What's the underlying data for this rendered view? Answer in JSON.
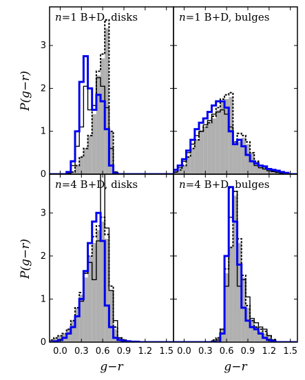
{
  "chart_data": {
    "type": "histogram-grid",
    "xlabel": "g−r",
    "ylabel": "P(g−r)",
    "xlim": [
      -0.15,
      1.6
    ],
    "xticks": [
      0.0,
      0.3,
      0.6,
      0.9,
      1.2,
      1.5
    ],
    "xtick_labels": [
      "0.0",
      "0.3",
      "0.6",
      "0.9",
      "1.2",
      "1.5"
    ],
    "ylim": [
      0,
      3.9
    ],
    "yticks": [
      0,
      1,
      2,
      3
    ],
    "ytick_labels": [
      "0",
      "1",
      "2",
      "3"
    ],
    "bin_edges": [
      -0.15,
      -0.09,
      -0.03,
      0.03,
      0.09,
      0.15,
      0.21,
      0.27,
      0.33,
      0.39,
      0.45,
      0.51,
      0.57,
      0.63,
      0.69,
      0.75,
      0.81,
      0.87,
      0.93,
      0.99,
      1.05,
      1.11,
      1.17,
      1.23,
      1.29,
      1.35,
      1.41,
      1.47,
      1.53,
      1.59
    ],
    "series_styles": {
      "filled": {
        "fill": "#b0b0b0"
      },
      "dotted": {
        "color": "#000000",
        "dash": "3,2",
        "width": 2
      },
      "black": {
        "color": "#000000",
        "width": 1.4
      },
      "blue": {
        "color": "#0000ee",
        "width": 3
      }
    },
    "panels": [
      {
        "title": "n=1 B+D, disks",
        "title_parts": [
          "n",
          "=1 B+D, disks"
        ],
        "filled": [
          0,
          0,
          0,
          0,
          0.02,
          0.05,
          0.2,
          0.4,
          0.6,
          0.9,
          1.4,
          2.3,
          2.7,
          3.4,
          1.0,
          0.05,
          0,
          0,
          0,
          0,
          0,
          0,
          0,
          0,
          0,
          0,
          0,
          0,
          0
        ],
        "dotted": [
          0,
          0,
          0,
          0,
          0.02,
          0.05,
          0.2,
          0.4,
          0.6,
          0.9,
          1.5,
          2.4,
          2.8,
          3.6,
          1.0,
          0.05,
          0,
          0,
          0,
          0,
          0,
          0,
          0,
          0,
          0,
          0,
          0,
          0,
          0
        ],
        "black": [
          0,
          0,
          0,
          0,
          0.02,
          0.2,
          0.65,
          1.1,
          2.05,
          1.5,
          1.6,
          2.25,
          2.05,
          1.55,
          0.6,
          0.05,
          0,
          0,
          0,
          0,
          0,
          0,
          0,
          0,
          0,
          0,
          0,
          0,
          0
        ],
        "blue": [
          0,
          0,
          0,
          0,
          0.05,
          0.3,
          1.0,
          2.15,
          2.75,
          2.0,
          1.5,
          1.85,
          1.7,
          1.05,
          0.2,
          0.02,
          0,
          0,
          0,
          0,
          0,
          0,
          0,
          0,
          0,
          0,
          0,
          0,
          0
        ]
      },
      {
        "title": "n=1 B+D, bulges",
        "title_parts": [
          "n",
          "=1 B+D, bulges"
        ],
        "filled": [
          0.05,
          0.1,
          0.2,
          0.4,
          0.6,
          0.8,
          1.0,
          1.1,
          1.2,
          1.3,
          1.5,
          1.7,
          1.75,
          1.8,
          0.7,
          0.75,
          0.85,
          0.7,
          0.5,
          0.3,
          0.2,
          0.15,
          0.12,
          0.08,
          0.06,
          0.04,
          0.02,
          0,
          0
        ],
        "dotted": [
          0.05,
          0.1,
          0.2,
          0.4,
          0.6,
          0.8,
          1.0,
          1.1,
          1.2,
          1.35,
          1.55,
          1.75,
          1.85,
          1.9,
          0.75,
          0.95,
          0.9,
          0.75,
          0.5,
          0.3,
          0.2,
          0.15,
          0.12,
          0.08,
          0.06,
          0.04,
          0.02,
          0,
          0
        ],
        "black": [
          0.05,
          0.15,
          0.3,
          0.5,
          0.7,
          0.9,
          1.0,
          1.15,
          1.25,
          1.4,
          1.45,
          1.5,
          1.4,
          1.1,
          0.75,
          0.8,
          0.65,
          0.45,
          0.3,
          0.2,
          0.15,
          0.12,
          0.08,
          0.06,
          0.04,
          0.02,
          0.01,
          0,
          0
        ],
        "blue": [
          0.1,
          0.2,
          0.35,
          0.55,
          0.8,
          1.05,
          1.2,
          1.3,
          1.45,
          1.6,
          1.7,
          1.7,
          1.55,
          1.0,
          0.7,
          0.8,
          0.65,
          0.45,
          0.3,
          0.25,
          0.2,
          0.18,
          0.12,
          0.1,
          0.08,
          0.05,
          0.03,
          0,
          0
        ]
      },
      {
        "title": "n=4 B+D, disks",
        "title_parts": [
          "n",
          "=4 B+D, disks"
        ],
        "filled": [
          0.05,
          0.1,
          0.15,
          0.2,
          0.3,
          0.5,
          0.8,
          1.1,
          1.5,
          2.0,
          2.3,
          2.6,
          2.8,
          2.4,
          1.2,
          0.3,
          0.1,
          0.05,
          0.02,
          0,
          0,
          0,
          0,
          0,
          0,
          0,
          0,
          0,
          0
        ],
        "dotted": [
          0.05,
          0.1,
          0.15,
          0.2,
          0.3,
          0.5,
          0.8,
          1.15,
          1.6,
          2.0,
          2.45,
          2.7,
          2.9,
          2.5,
          1.3,
          0.35,
          0.1,
          0.05,
          0.02,
          0,
          0,
          0,
          0,
          0,
          0,
          0,
          0,
          0,
          0
        ],
        "black": [
          0,
          0.02,
          0.05,
          0.1,
          0.2,
          0.35,
          0.6,
          0.95,
          1.6,
          1.85,
          1.45,
          2.35,
          3.95,
          2.65,
          1.2,
          0.5,
          0.1,
          0.05,
          0.02,
          0,
          0,
          0,
          0,
          0,
          0,
          0,
          0,
          0,
          0
        ],
        "blue": [
          0,
          0.02,
          0.05,
          0.1,
          0.2,
          0.35,
          0.6,
          1.0,
          1.65,
          2.3,
          2.8,
          3.0,
          2.35,
          0.85,
          0.35,
          0.1,
          0.05,
          0.03,
          0.02,
          0.01,
          0.01,
          0,
          0,
          0,
          0,
          0,
          0,
          0,
          0
        ]
      },
      {
        "title": "n=4 B+D, bulges",
        "title_parts": [
          "n",
          "=4 B+D, bulges"
        ],
        "filled": [
          0,
          0,
          0,
          0,
          0,
          0,
          0,
          0,
          0,
          0.05,
          0.1,
          0.3,
          1.6,
          2.2,
          3.4,
          2.3,
          1.5,
          0.8,
          0.5,
          0.35,
          0.25,
          0.2,
          0.12,
          0.05,
          0,
          0,
          0,
          0,
          0
        ],
        "dotted": [
          0,
          0,
          0,
          0,
          0,
          0,
          0,
          0,
          0,
          0.05,
          0.1,
          0.3,
          1.7,
          2.2,
          3.5,
          2.4,
          1.55,
          0.85,
          0.5,
          0.35,
          0.3,
          0.25,
          0.15,
          0.06,
          0,
          0,
          0,
          0,
          0
        ],
        "black": [
          0,
          0,
          0,
          0,
          0,
          0,
          0,
          0,
          0,
          0.02,
          0.05,
          0.3,
          1.3,
          2.9,
          3.5,
          1.3,
          1.45,
          1.05,
          0.55,
          0.45,
          0.35,
          0.3,
          0.15,
          0.05,
          0,
          0,
          0,
          0,
          0
        ],
        "blue": [
          0,
          0,
          0,
          0,
          0,
          0,
          0,
          0,
          0,
          0,
          0,
          0.2,
          2.0,
          3.6,
          2.8,
          1.8,
          0.8,
          0.5,
          0.35,
          0.3,
          0.2,
          0.1,
          0.05,
          0.02,
          0,
          0,
          0,
          0,
          0
        ]
      }
    ]
  }
}
